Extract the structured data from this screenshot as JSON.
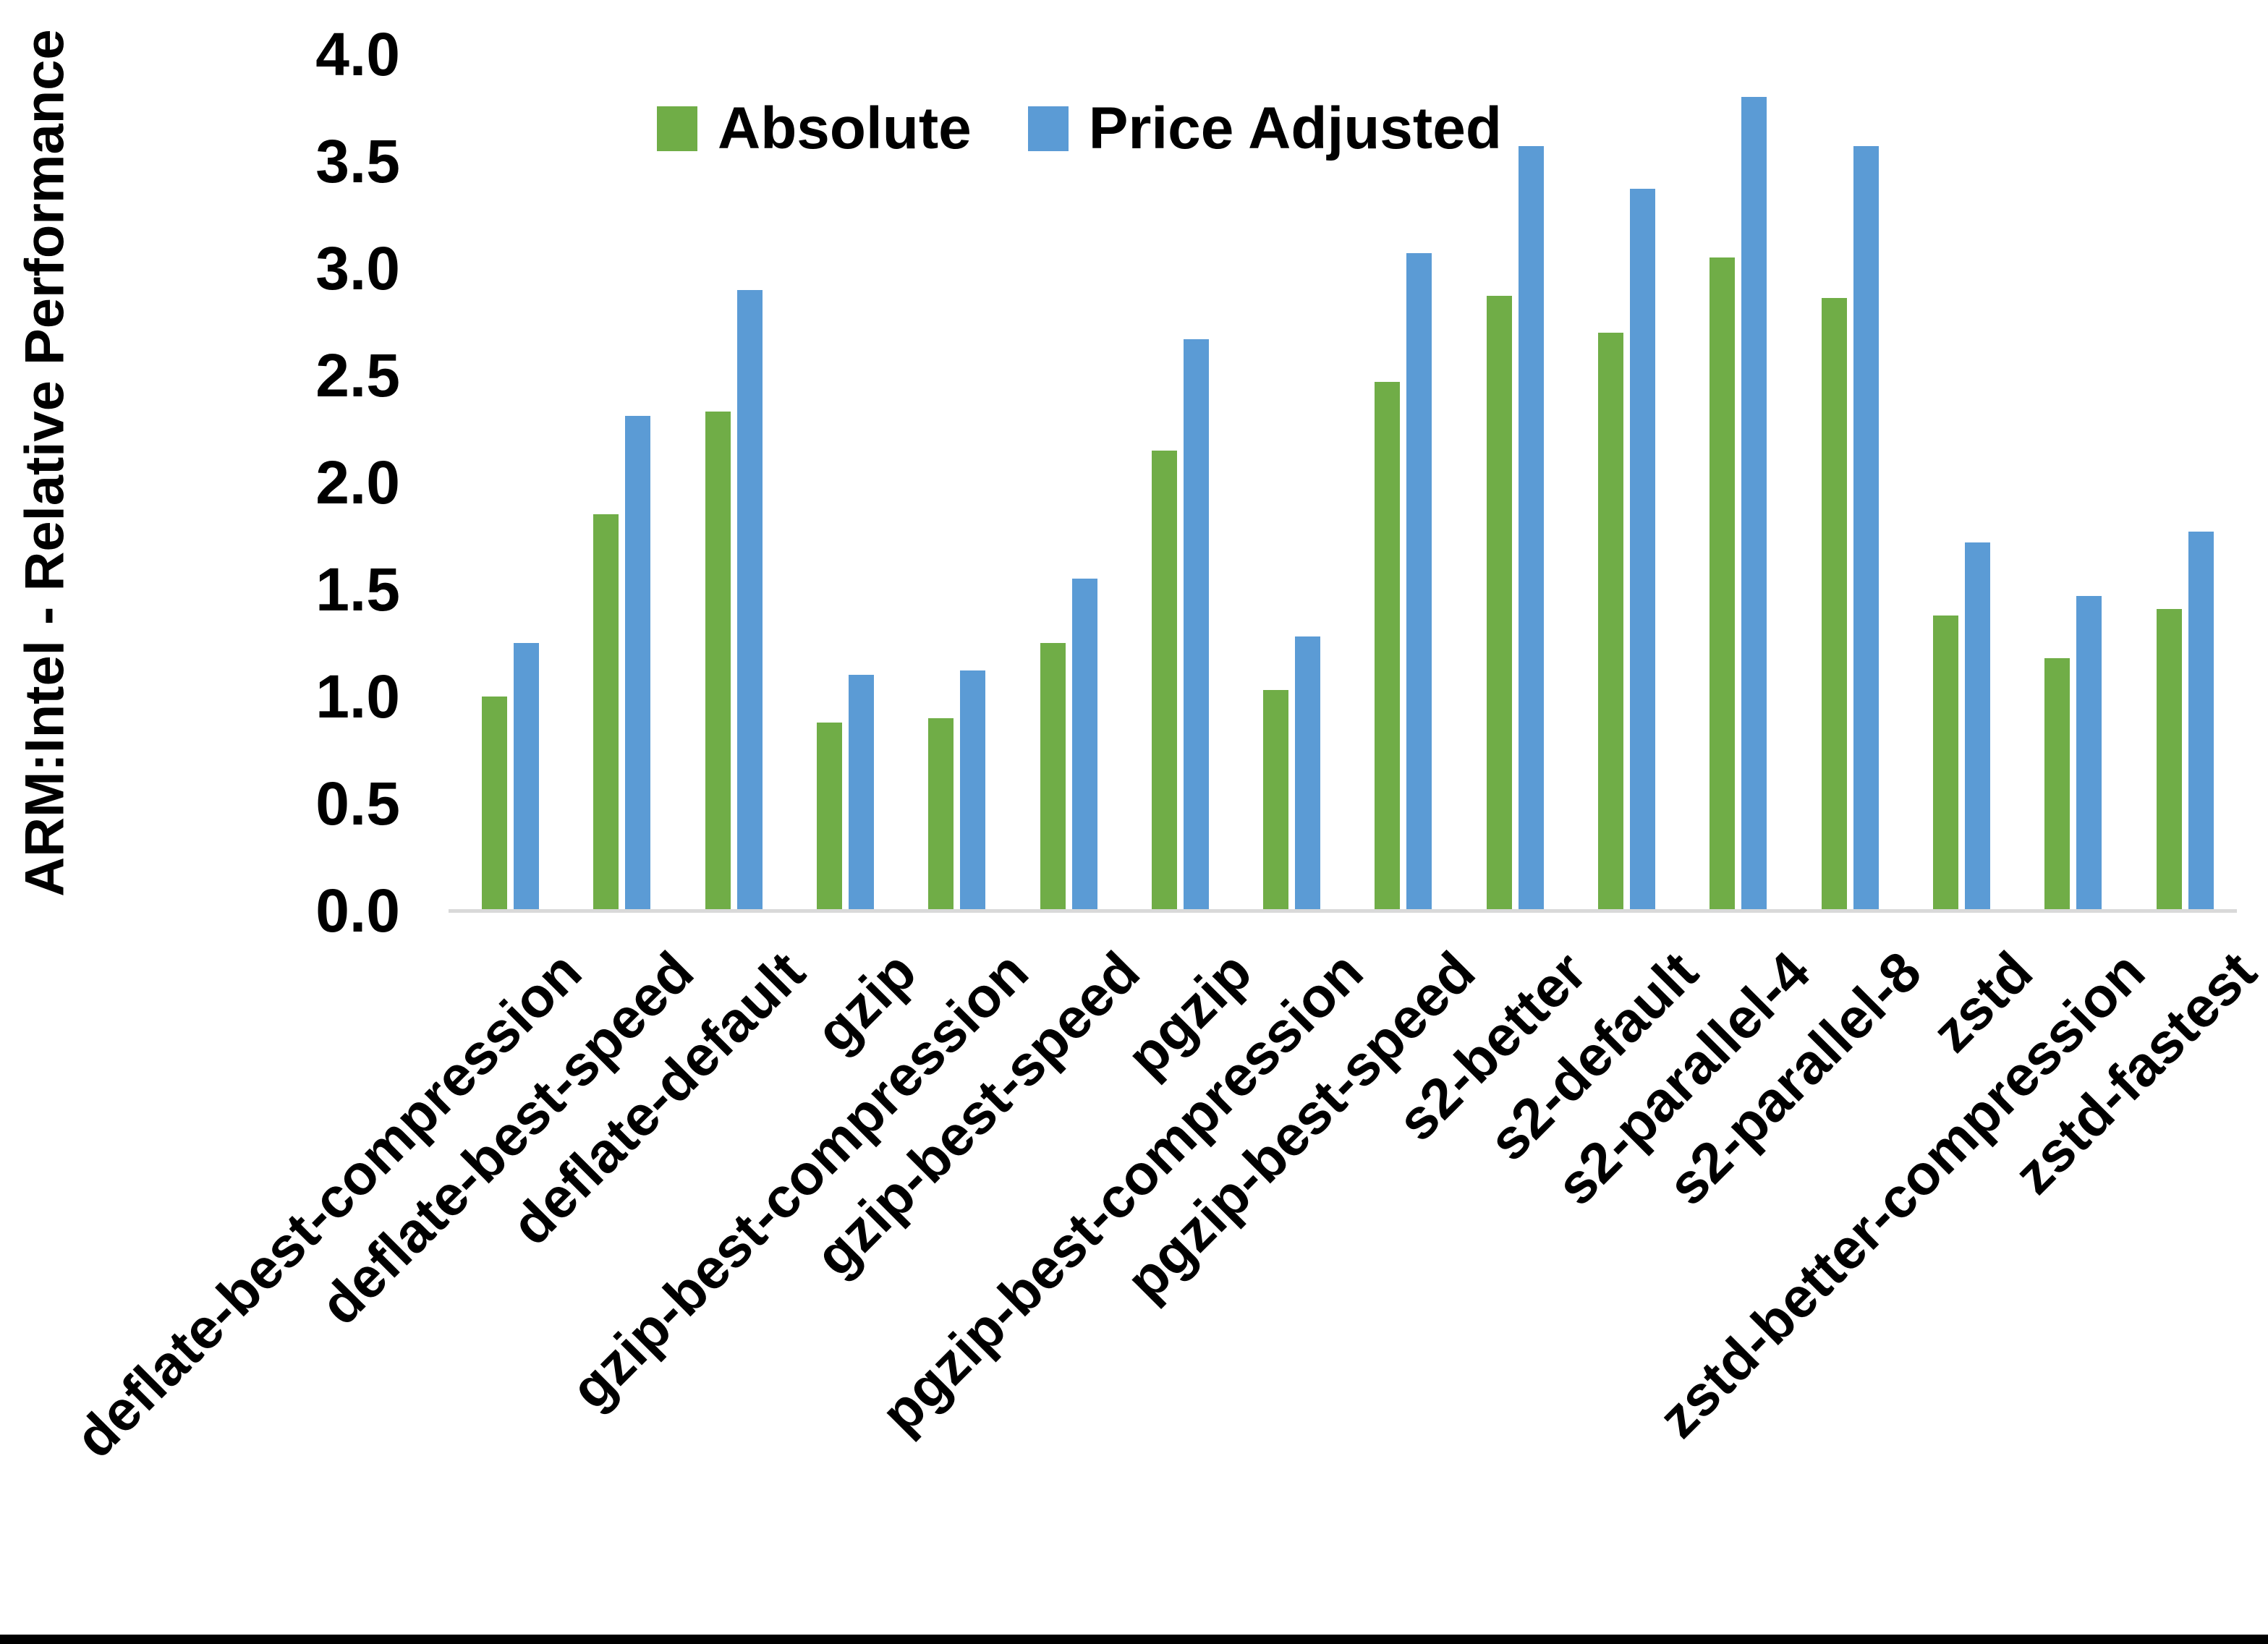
{
  "chart_data": {
    "type": "bar",
    "title": "",
    "xlabel": "",
    "ylabel": "ARM:Intel - Relative Performance",
    "ylim": [
      0.0,
      4.0
    ],
    "y_ticks": [
      "0.0",
      "0.5",
      "1.0",
      "1.5",
      "2.0",
      "2.5",
      "3.0",
      "3.5",
      "4.0"
    ],
    "grid": "off",
    "legend_position": "top-center",
    "background_color": "#ffffff",
    "axis_line_color": "#d9d9d9",
    "categories": [
      "deflate-best-compression",
      "deflate-best-speed",
      "deflate-default",
      "gzip",
      "gzip-best-compression",
      "gzip-best-speed",
      "pgzip",
      "pgzip-best-compression",
      "pgzip-best-speed",
      "s2-better",
      "s2-default",
      "s2-parallel-4",
      "s2-parallel-8",
      "zstd",
      "zstd-better-compression",
      "zstd-fastest"
    ],
    "series": [
      {
        "name": "Absolute",
        "color": "#70AD47",
        "values": [
          1.0,
          1.85,
          2.33,
          0.88,
          0.9,
          1.25,
          2.15,
          1.03,
          2.47,
          2.87,
          2.7,
          3.05,
          2.86,
          1.38,
          1.18,
          1.41
        ]
      },
      {
        "name": "Price Adjusted",
        "color": "#5B9BD5",
        "values": [
          1.25,
          2.31,
          2.9,
          1.1,
          1.12,
          1.55,
          2.67,
          1.28,
          3.07,
          3.57,
          3.37,
          3.8,
          3.57,
          1.72,
          1.47,
          1.77
        ]
      }
    ]
  }
}
